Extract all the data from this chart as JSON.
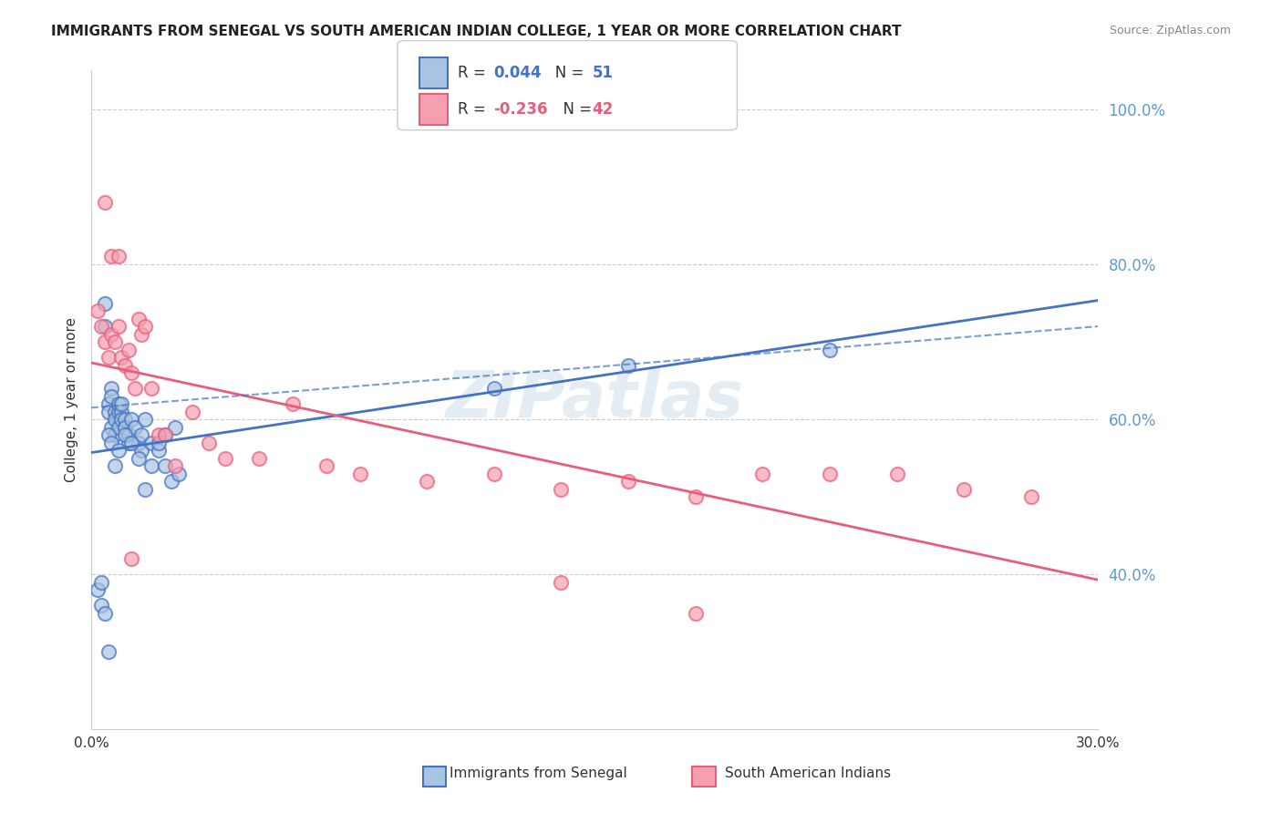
{
  "title": "IMMIGRANTS FROM SENEGAL VS SOUTH AMERICAN INDIAN COLLEGE, 1 YEAR OR MORE CORRELATION CHART",
  "source": "Source: ZipAtlas.com",
  "ylabel": "College, 1 year or more",
  "xlabel": "",
  "xmin": 0.0,
  "xmax": 0.3,
  "ymin": 0.2,
  "ymax": 1.05,
  "yticks": [
    0.4,
    0.6,
    0.8,
    1.0
  ],
  "ytick_labels": [
    "40.0%",
    "60.0%",
    "80.0%",
    "100.0%"
  ],
  "xticks": [
    0.0,
    0.05,
    0.1,
    0.15,
    0.2,
    0.25,
    0.3
  ],
  "xtick_labels": [
    "0.0%",
    "",
    "",
    "",
    "",
    "",
    "30.0%"
  ],
  "series1_label": "Immigrants from Senegal",
  "series1_R": "0.044",
  "series1_N": "51",
  "series1_color": "#a8c4e0",
  "series1_line_color": "#4472c4",
  "series2_label": "South American Indians",
  "series2_R": "-0.236",
  "series2_N": "42",
  "series2_color": "#f4a0b0",
  "series2_line_color": "#e85d7a",
  "background_color": "#ffffff",
  "grid_color": "#cccccc",
  "right_axis_color": "#5b9bd5",
  "watermark": "ZIPatlas",
  "series1_x": [
    0.002,
    0.003,
    0.004,
    0.004,
    0.005,
    0.005,
    0.006,
    0.006,
    0.006,
    0.007,
    0.007,
    0.007,
    0.008,
    0.008,
    0.008,
    0.009,
    0.009,
    0.01,
    0.01,
    0.011,
    0.011,
    0.012,
    0.013,
    0.014,
    0.015,
    0.015,
    0.016,
    0.018,
    0.02,
    0.022,
    0.025,
    0.003,
    0.004,
    0.005,
    0.006,
    0.007,
    0.008,
    0.009,
    0.01,
    0.012,
    0.014,
    0.016,
    0.018,
    0.02,
    0.022,
    0.024,
    0.026,
    0.12,
    0.16,
    0.22,
    0.005
  ],
  "series1_y": [
    0.38,
    0.36,
    0.75,
    0.72,
    0.62,
    0.61,
    0.64,
    0.63,
    0.59,
    0.61,
    0.6,
    0.58,
    0.61,
    0.62,
    0.59,
    0.61,
    0.6,
    0.6,
    0.59,
    0.58,
    0.57,
    0.6,
    0.59,
    0.57,
    0.58,
    0.56,
    0.6,
    0.57,
    0.56,
    0.58,
    0.59,
    0.39,
    0.35,
    0.58,
    0.57,
    0.54,
    0.56,
    0.62,
    0.58,
    0.57,
    0.55,
    0.51,
    0.54,
    0.57,
    0.54,
    0.52,
    0.53,
    0.64,
    0.67,
    0.69,
    0.3
  ],
  "series2_x": [
    0.002,
    0.003,
    0.004,
    0.005,
    0.006,
    0.007,
    0.008,
    0.009,
    0.01,
    0.011,
    0.012,
    0.013,
    0.014,
    0.015,
    0.016,
    0.018,
    0.02,
    0.022,
    0.025,
    0.03,
    0.035,
    0.04,
    0.05,
    0.06,
    0.07,
    0.08,
    0.1,
    0.12,
    0.14,
    0.16,
    0.18,
    0.2,
    0.22,
    0.24,
    0.26,
    0.28,
    0.004,
    0.006,
    0.008,
    0.012,
    0.14,
    0.18
  ],
  "series2_y": [
    0.74,
    0.72,
    0.7,
    0.68,
    0.71,
    0.7,
    0.72,
    0.68,
    0.67,
    0.69,
    0.66,
    0.64,
    0.73,
    0.71,
    0.72,
    0.64,
    0.58,
    0.58,
    0.54,
    0.61,
    0.57,
    0.55,
    0.55,
    0.62,
    0.54,
    0.53,
    0.52,
    0.53,
    0.51,
    0.52,
    0.5,
    0.53,
    0.53,
    0.53,
    0.51,
    0.5,
    0.88,
    0.81,
    0.81,
    0.42,
    0.39,
    0.35
  ]
}
